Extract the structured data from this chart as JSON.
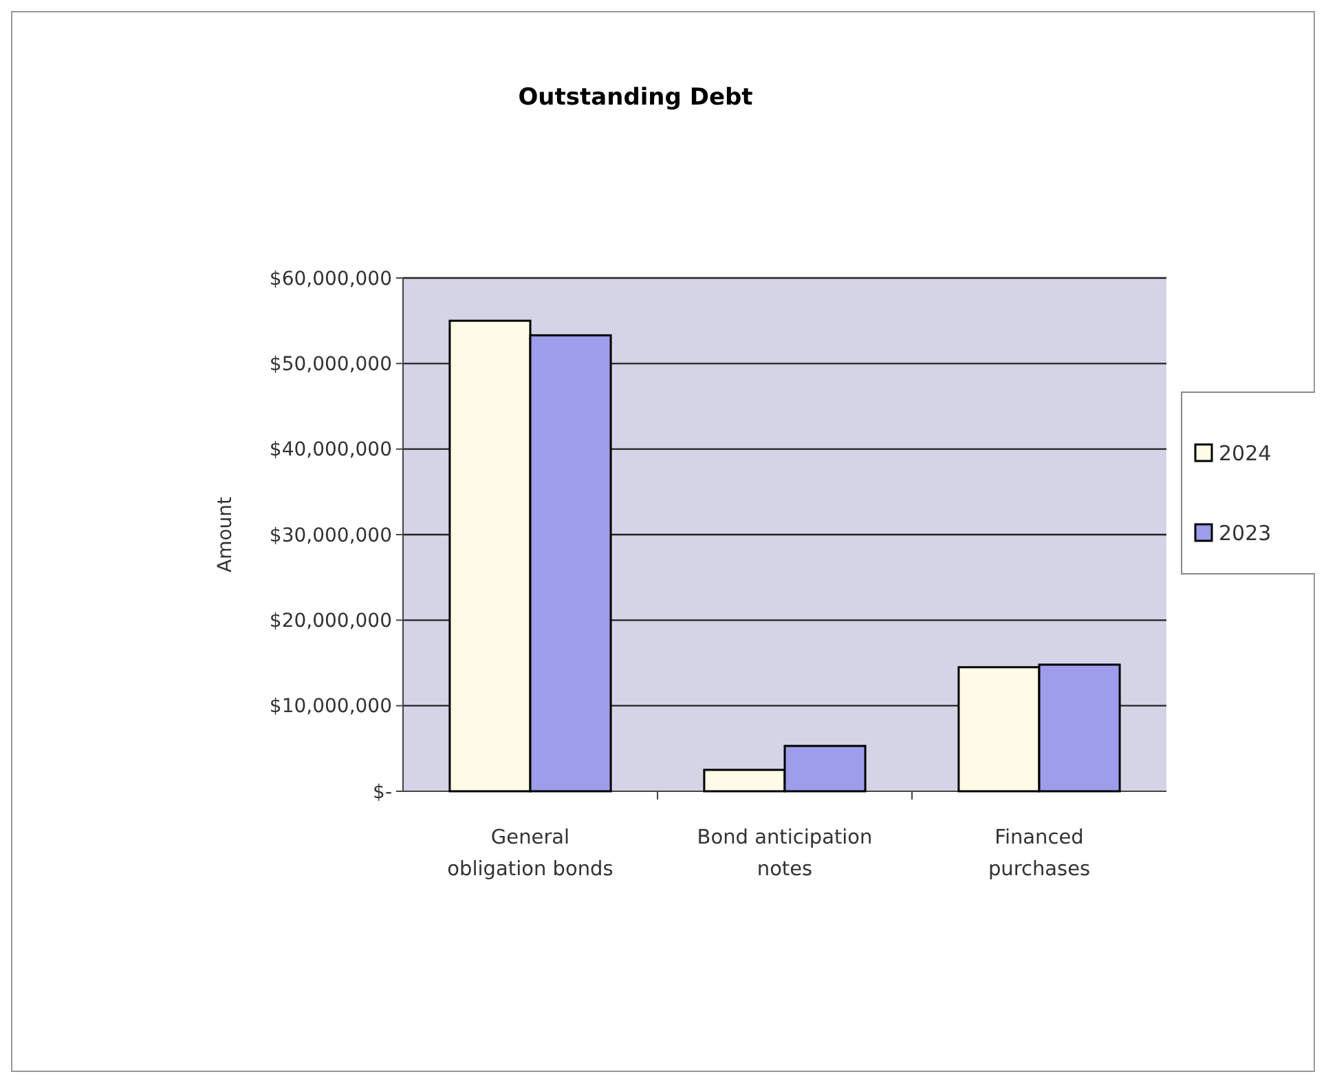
{
  "chart_data": {
    "type": "bar",
    "title": "Outstanding Debt",
    "ylabel": "Amount",
    "categories": [
      "General obligation bonds",
      "Bond anticipation notes",
      "Financed purchases"
    ],
    "series": [
      {
        "name": "2024",
        "color": "#fffbe6",
        "values": [
          55000000,
          2500000,
          14500000
        ]
      },
      {
        "name": "2023",
        "color": "#9d9deb",
        "values": [
          53300000,
          5300000,
          14800000
        ]
      }
    ],
    "ylim": [
      0,
      60000000
    ],
    "yticks": [
      {
        "value": 0,
        "label": "$-"
      },
      {
        "value": 10000000,
        "label": "$10,000,000"
      },
      {
        "value": 20000000,
        "label": "$20,000,000"
      },
      {
        "value": 30000000,
        "label": "$30,000,000"
      },
      {
        "value": 40000000,
        "label": "$40,000,000"
      },
      {
        "value": 50000000,
        "label": "$50,000,000"
      },
      {
        "value": 60000000,
        "label": "$60,000,000"
      }
    ],
    "grid": "y",
    "legend": "right"
  }
}
